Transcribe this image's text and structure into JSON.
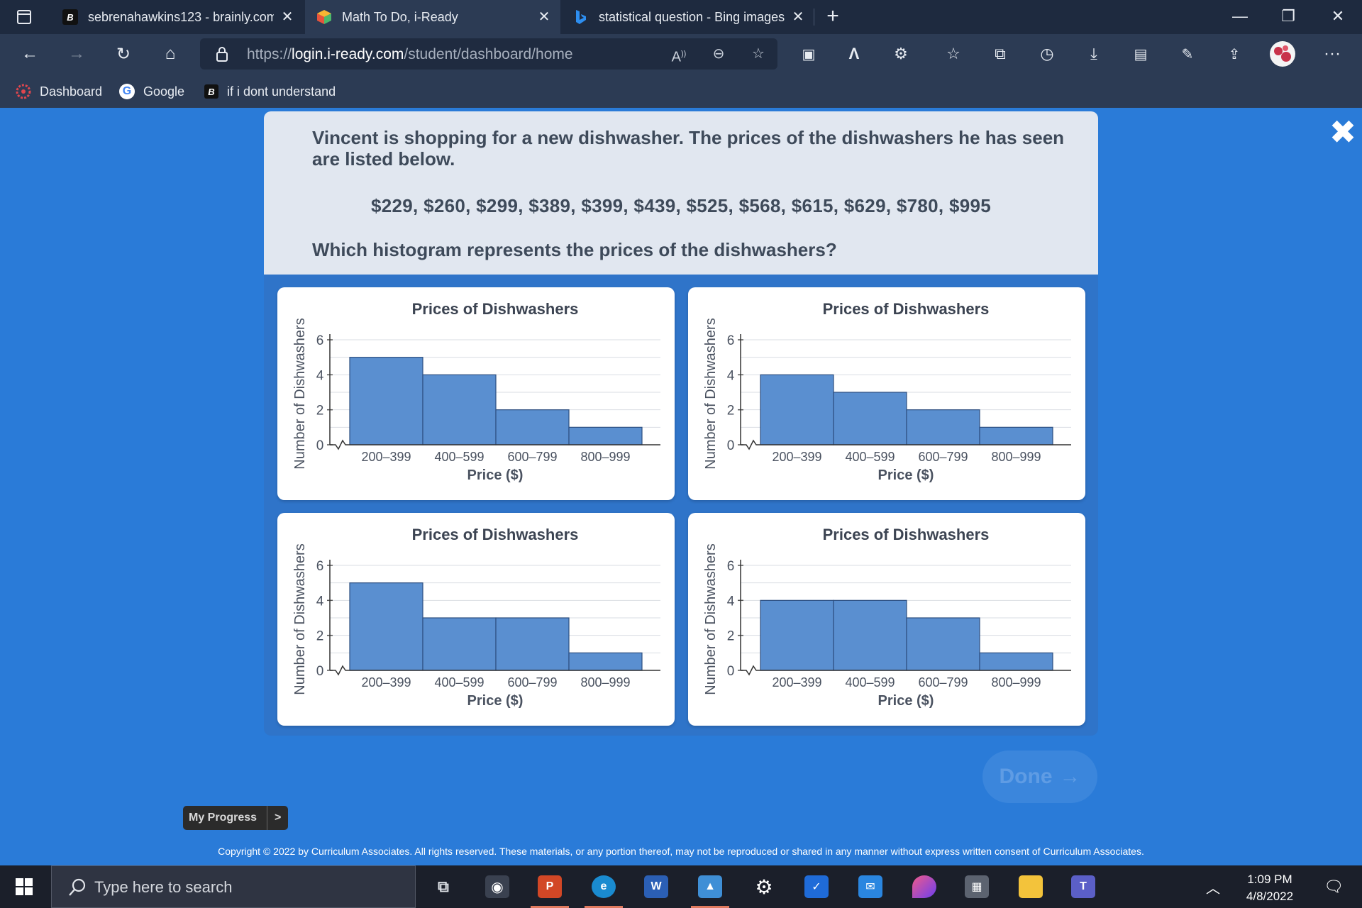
{
  "browser": {
    "tabs": [
      {
        "title": "sebrenahawkins123 - brainly.com",
        "icon": "brainly-icon"
      },
      {
        "title": "Math To Do, i-Ready",
        "icon": "iready-icon"
      },
      {
        "title": "statistical question - Bing images",
        "icon": "bing-icon"
      }
    ],
    "active_tab": 1,
    "url_prefix": "https://",
    "url_host": "login.i-ready.com",
    "url_path": "/student/dashboard/home",
    "bookmarks": [
      {
        "label": "Dashboard",
        "icon": "canvas-icon"
      },
      {
        "label": "Google",
        "icon": "google-icon"
      },
      {
        "label": "if i dont understand",
        "icon": "brainly-icon"
      }
    ]
  },
  "question": {
    "text": "Vincent is shopping for a new dishwasher. The prices of the dishwashers he has seen are listed below.",
    "prices": "$229,  $260,  $299,  $389,  $399,  $439,  $525,  $568,  $615,  $629,  $780,  $995",
    "ask": "Which histogram represents the prices of the dishwashers?"
  },
  "chart_data": [
    {
      "type": "bar",
      "title": "Prices of Dishwashers",
      "xlabel": "Price ($)",
      "ylabel": "Number of Dishwashers",
      "categories": [
        "200–399",
        "400–599",
        "600–799",
        "800–999"
      ],
      "values": [
        5,
        4,
        2,
        1
      ],
      "ylim": [
        0,
        6
      ],
      "yticks": [
        0,
        2,
        4,
        6
      ],
      "grid": true
    },
    {
      "type": "bar",
      "title": "Prices of Dishwashers",
      "xlabel": "Price ($)",
      "ylabel": "Number of Dishwashers",
      "categories": [
        "200–399",
        "400–599",
        "600–799",
        "800–999"
      ],
      "values": [
        4,
        3,
        2,
        1
      ],
      "ylim": [
        0,
        6
      ],
      "yticks": [
        0,
        2,
        4,
        6
      ],
      "grid": true
    },
    {
      "type": "bar",
      "title": "Prices of Dishwashers",
      "xlabel": "Price ($)",
      "ylabel": "Number of Dishwashers",
      "categories": [
        "200–399",
        "400–599",
        "600–799",
        "800–999"
      ],
      "values": [
        5,
        3,
        3,
        1
      ],
      "ylim": [
        0,
        6
      ],
      "yticks": [
        0,
        2,
        4,
        6
      ],
      "grid": true
    },
    {
      "type": "bar",
      "title": "Prices of Dishwashers",
      "xlabel": "Price ($)",
      "ylabel": "Number of Dishwashers",
      "categories": [
        "200–399",
        "400–599",
        "600–799",
        "800–999"
      ],
      "values": [
        4,
        4,
        3,
        1
      ],
      "ylim": [
        0,
        6
      ],
      "yticks": [
        0,
        2,
        4,
        6
      ],
      "grid": true
    }
  ],
  "colors": {
    "bar_fill": "#5a8fd0",
    "bar_stroke": "#2d4f80",
    "page_bg": "#2a7bd8"
  },
  "done_label": "Done",
  "progress": {
    "label": "My Progress",
    "arrow": ">"
  },
  "copyright": "Copyright © 2022 by Curriculum Associates. All rights reserved. These materials, or any portion thereof, may not be reproduced or shared in any manner without express written consent of Curriculum Associates.",
  "taskbar": {
    "search_placeholder": "Type here to search",
    "time": "1:09 PM",
    "date": "4/8/2022"
  }
}
